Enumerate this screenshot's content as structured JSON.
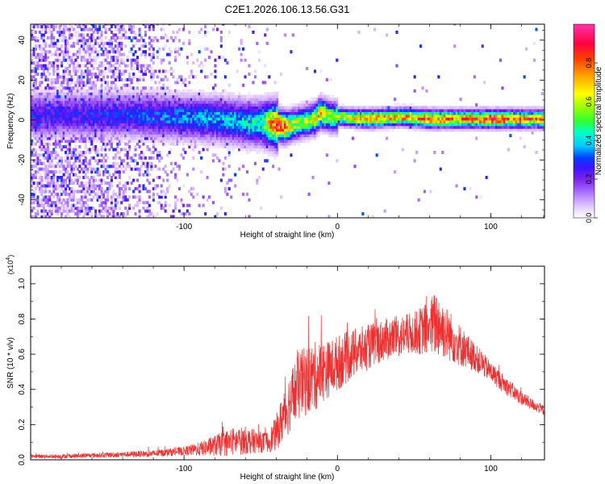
{
  "title": "C2E1.2026.106.13.56.G31",
  "charts": [
    {
      "type": "heatmap",
      "xlabel": "Height of straight line (km)",
      "ylabel": "Frequency (Hz)",
      "xlim": [
        -200,
        135
      ],
      "ylim": [
        -49,
        48
      ],
      "xticks": [
        -100,
        0,
        100
      ],
      "yticks": [
        -40,
        -20,
        0,
        20,
        40
      ],
      "colorbar": {
        "label": "Normalized spectral amplitude",
        "range": [
          0,
          1
        ],
        "ticks": [
          "0.0",
          "0.2",
          "0.4",
          "0.6",
          "0.8"
        ],
        "tick_values": [
          0,
          0.2,
          0.4,
          0.6,
          0.8
        ],
        "colormap": [
          "#ffffff",
          "#f2e6ff",
          "#d2b0ff",
          "#a266ff",
          "#7a24e8",
          "#3c14ff",
          "#0040ff",
          "#00c8ff",
          "#00ffc8",
          "#30ff30",
          "#a8ff00",
          "#ffff00",
          "#ffb000",
          "#ff4000",
          "#ff0040",
          "#ff33aa"
        ],
        "colormap_stops": [
          0.0,
          0.03,
          0.08,
          0.14,
          0.2,
          0.26,
          0.31,
          0.37,
          0.44,
          0.5,
          0.58,
          0.64,
          0.72,
          0.82,
          0.9,
          1.0
        ]
      },
      "ridge": {
        "x": [
          -170,
          -140,
          -110,
          -80,
          -60,
          -50,
          -40,
          -35,
          -30,
          -25,
          -20,
          -15,
          -12,
          -5,
          0,
          20,
          40,
          60,
          80,
          100,
          120,
          135
        ],
        "frequency": [
          2,
          2,
          1,
          0,
          -2,
          -2,
          -3,
          -4,
          -3,
          -2,
          -1,
          0,
          3,
          1,
          1,
          0,
          1,
          0,
          0,
          0,
          0,
          0
        ],
        "amplitude": [
          0.25,
          0.28,
          0.32,
          0.36,
          0.4,
          0.45,
          0.85,
          0.8,
          0.6,
          0.55,
          0.55,
          0.62,
          0.68,
          0.55,
          0.58,
          0.78,
          0.7,
          0.8,
          0.75,
          0.85,
          0.78,
          0.72
        ]
      }
    },
    {
      "type": "line",
      "xlabel": "Height of straight line (km)",
      "ylabel": "SNR (10 * v/v)",
      "yscale_label": "(x10^4)",
      "yscale_base": "(x10",
      "yscale_exp": "4",
      "yscale_close": ")",
      "xlim": [
        -200,
        135
      ],
      "ylim": [
        0,
        1.1
      ],
      "xticks": [
        -100,
        0,
        100
      ],
      "yticks": [
        "0.0",
        "0.2",
        "0.4",
        "0.6",
        "0.8",
        "1.0"
      ],
      "ytick_values": [
        0,
        0.2,
        0.4,
        0.6,
        0.8,
        1.0
      ],
      "color": "#f03030",
      "series": [
        {
          "x": [
            -200,
            -180,
            -160,
            -140,
            -120,
            -100,
            -90,
            -80,
            -70,
            -60,
            -50,
            -45,
            -40,
            -35,
            -30,
            -25,
            -20,
            -15,
            -10,
            -5,
            0,
            10,
            20,
            30,
            40,
            50,
            60,
            65,
            70,
            80,
            90,
            100,
            110,
            120,
            130,
            135
          ],
          "mean": [
            0.02,
            0.02,
            0.025,
            0.03,
            0.035,
            0.05,
            0.06,
            0.08,
            0.1,
            0.11,
            0.1,
            0.1,
            0.15,
            0.25,
            0.35,
            0.42,
            0.45,
            0.47,
            0.5,
            0.52,
            0.55,
            0.6,
            0.64,
            0.68,
            0.7,
            0.72,
            0.75,
            0.78,
            0.73,
            0.65,
            0.58,
            0.5,
            0.42,
            0.35,
            0.3,
            0.28
          ],
          "spread": [
            0.01,
            0.012,
            0.014,
            0.016,
            0.02,
            0.025,
            0.04,
            0.06,
            0.08,
            0.08,
            0.06,
            0.06,
            0.1,
            0.15,
            0.18,
            0.2,
            0.2,
            0.2,
            0.18,
            0.16,
            0.16,
            0.14,
            0.13,
            0.12,
            0.12,
            0.12,
            0.16,
            0.2,
            0.16,
            0.12,
            0.08,
            0.06,
            0.05,
            0.04,
            0.03,
            0.03
          ]
        }
      ]
    }
  ]
}
